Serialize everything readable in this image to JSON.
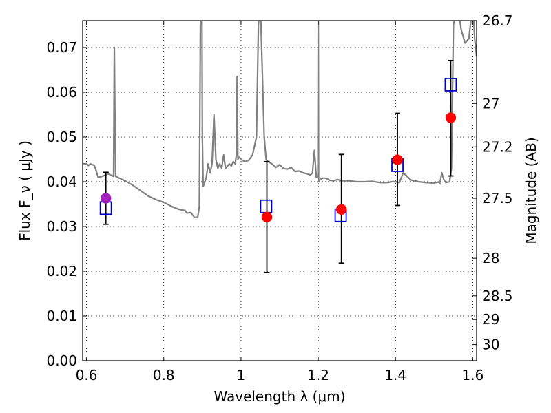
{
  "chart_data": {
    "type": "scatter",
    "xlabel": "Wavelength  λ (μm)",
    "ylabel_left": "Flux  F_ν  ( μJy )",
    "ylabel_right": "Magnitude (AB)",
    "xlim": [
      0.59,
      1.61
    ],
    "ylim": [
      0.0,
      0.076
    ],
    "grid": true,
    "x_ticks": [
      0.6,
      0.8,
      1.0,
      1.2,
      1.4,
      1.6
    ],
    "x_tick_labels": [
      "0.6",
      "0.8",
      "1",
      "1.2",
      "1.4",
      "1.6"
    ],
    "y_ticks": [
      0.0,
      0.01,
      0.02,
      0.03,
      0.04,
      0.05,
      0.06,
      0.07
    ],
    "y_tick_labels": [
      "0.00",
      "0.01",
      "0.02",
      "0.03",
      "0.04",
      "0.05",
      "0.06",
      "0.07"
    ],
    "right_ticks": [
      {
        "flux": 0.076,
        "label": "26.7"
      },
      {
        "flux": 0.0575,
        "label": "27"
      },
      {
        "flux": 0.0478,
        "label": "27.2"
      },
      {
        "flux": 0.0363,
        "label": "27.5"
      },
      {
        "flux": 0.0229,
        "label": "28"
      },
      {
        "flux": 0.0145,
        "label": "28.5"
      },
      {
        "flux": 0.0092,
        "label": "29"
      },
      {
        "flux": 0.0036,
        "label": "30"
      }
    ],
    "series": [
      {
        "kind": "spectrum",
        "color": "#808080",
        "x": [
          0.59,
          0.6,
          0.605,
          0.61,
          0.615,
          0.62,
          0.625,
          0.63,
          0.64,
          0.65,
          0.655,
          0.66,
          0.665,
          0.67,
          0.672,
          0.675,
          0.678,
          0.68,
          0.7,
          0.72,
          0.74,
          0.76,
          0.78,
          0.8,
          0.82,
          0.84,
          0.855,
          0.86,
          0.87,
          0.88,
          0.888,
          0.892,
          0.895,
          0.897,
          0.899,
          0.9,
          0.902,
          0.905,
          0.91,
          0.915,
          0.92,
          0.925,
          0.93,
          0.935,
          0.94,
          0.945,
          0.95,
          0.955,
          0.96,
          0.97,
          0.975,
          0.98,
          0.985,
          0.988,
          0.99,
          0.992,
          0.995,
          1.0,
          1.01,
          1.02,
          1.03,
          1.04,
          1.045,
          1.05,
          1.055,
          1.06,
          1.065,
          1.07,
          1.08,
          1.09,
          1.1,
          1.11,
          1.12,
          1.13,
          1.14,
          1.15,
          1.16,
          1.17,
          1.18,
          1.185,
          1.19,
          1.195,
          1.199,
          1.2,
          1.201,
          1.205,
          1.21,
          1.22,
          1.23,
          1.24,
          1.25,
          1.26,
          1.28,
          1.3,
          1.32,
          1.34,
          1.36,
          1.38,
          1.39,
          1.4,
          1.41,
          1.42,
          1.44,
          1.46,
          1.48,
          1.5,
          1.51,
          1.515,
          1.52,
          1.525,
          1.53,
          1.54,
          1.545,
          1.55,
          1.56,
          1.57,
          1.58,
          1.59,
          1.6,
          1.605,
          1.61
        ],
        "y": [
          0.044,
          0.044,
          0.0436,
          0.044,
          0.0438,
          0.0437,
          0.0425,
          0.041,
          0.0412,
          0.0415,
          0.0418,
          0.0416,
          0.0414,
          0.0412,
          0.07,
          0.0412,
          0.0412,
          0.041,
          0.0402,
          0.0392,
          0.038,
          0.0368,
          0.036,
          0.0354,
          0.0345,
          0.0338,
          0.0336,
          0.033,
          0.0331,
          0.032,
          0.0321,
          0.0345,
          0.075,
          0.08,
          0.076,
          0.05,
          0.039,
          0.0395,
          0.041,
          0.044,
          0.042,
          0.044,
          0.055,
          0.045,
          0.043,
          0.044,
          0.043,
          0.046,
          0.043,
          0.044,
          0.0435,
          0.0445,
          0.044,
          0.046,
          0.0635,
          0.045,
          0.0455,
          0.045,
          0.0445,
          0.0448,
          0.046,
          0.05,
          0.075,
          0.08,
          0.065,
          0.05,
          0.045,
          0.0445,
          0.044,
          0.0432,
          0.0438,
          0.043,
          0.0428,
          0.0432,
          0.0423,
          0.0424,
          0.042,
          0.0418,
          0.0415,
          0.042,
          0.047,
          0.041,
          0.041,
          0.08,
          0.04,
          0.0405,
          0.0408,
          0.0408,
          0.0403,
          0.0402,
          0.0405,
          0.0402,
          0.0402,
          0.04,
          0.04,
          0.0401,
          0.0398,
          0.0398,
          0.04,
          0.04,
          0.0398,
          0.042,
          0.0404,
          0.04,
          0.0398,
          0.0397,
          0.0399,
          0.0397,
          0.042,
          0.0405,
          0.0398,
          0.04,
          0.043,
          0.075,
          0.08,
          0.074,
          0.071,
          0.072,
          0.08,
          0.072,
          0.068
        ]
      },
      {
        "kind": "model-boxes",
        "marker": "square",
        "color": "#0000cc",
        "x": [
          0.65,
          1.065,
          1.258,
          1.405,
          1.543
        ],
        "y": [
          0.0341,
          0.0345,
          0.0325,
          0.0437,
          0.0617
        ]
      },
      {
        "kind": "observed",
        "marker": "circle",
        "color": "#ff0000",
        "x": [
          0.65,
          1.067,
          1.26,
          1.405,
          1.543
        ],
        "y": [
          0.0363,
          0.0321,
          0.0338,
          0.0449,
          0.0543
        ],
        "point_colors": [
          "#a020c0",
          "#ff0000",
          "#ff0000",
          "#ff0000",
          "#ff0000"
        ],
        "err_low": [
          0.0058,
          0.0124,
          0.012,
          0.0102,
          0.013
        ],
        "err_high": [
          0.0058,
          0.0124,
          0.0123,
          0.0104,
          0.0128
        ]
      }
    ]
  }
}
